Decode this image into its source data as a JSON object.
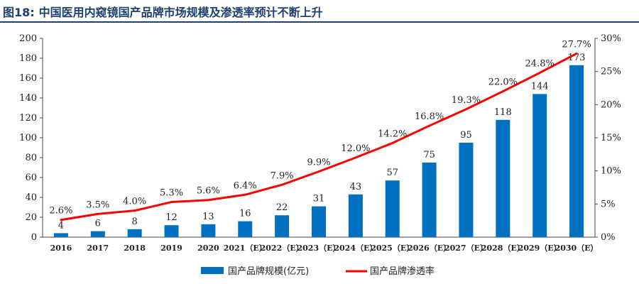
{
  "figure": {
    "number": "图18:",
    "title": "中国医用内窥镜国产品牌市场规模及渗透率预计不断上升",
    "title_color": "#1f3f6e",
    "rule_color": "#1f3f6e"
  },
  "chart_data": {
    "type": "bar",
    "categories": [
      "2016",
      "2017",
      "2018",
      "2019",
      "2020",
      "2021（E）",
      "2022（E）",
      "2023（E）",
      "2024（E）",
      "2025（E）",
      "2026（E）",
      "2027（E）",
      "2028（E）",
      "2029（E）",
      "2030（E）"
    ],
    "series": [
      {
        "name": "国产品牌规模(亿元)",
        "type": "bar",
        "axis": "left",
        "color": "#0070c0",
        "values": [
          4,
          6,
          8,
          12,
          13,
          16,
          22,
          31,
          43,
          57,
          75,
          95,
          118,
          144,
          173
        ],
        "labels": [
          "4",
          "6",
          "8",
          "12",
          "13",
          "16",
          "22",
          "31",
          "43",
          "57",
          "75",
          "95",
          "118",
          "144",
          "173"
        ]
      },
      {
        "name": "国产品牌渗透率",
        "type": "line",
        "axis": "right",
        "color": "#ff0000",
        "values": [
          2.6,
          3.5,
          4.0,
          5.3,
          5.6,
          6.4,
          7.9,
          9.9,
          12.0,
          14.2,
          16.8,
          19.3,
          22.0,
          24.8,
          27.7
        ],
        "labels": [
          "2.6%",
          "3.5%",
          "4.0%",
          "5.3%",
          "5.6%",
          "6.4%",
          "7.9%",
          "9.9%",
          "12.0%",
          "14.2%",
          "16.8%",
          "19.3%",
          "22.0%",
          "24.8%",
          "27.7%"
        ]
      }
    ],
    "left_axis": {
      "ylim": [
        0,
        200
      ],
      "ticks": [
        0,
        20,
        40,
        60,
        80,
        100,
        120,
        140,
        160,
        180,
        200
      ],
      "tick_labels": [
        "0",
        "20",
        "40",
        "60",
        "80",
        "100",
        "120",
        "140",
        "160",
        "180",
        "200"
      ]
    },
    "right_axis": {
      "ylim": [
        0,
        30
      ],
      "ticks": [
        0,
        5,
        10,
        15,
        20,
        25,
        30
      ],
      "tick_labels": [
        "0%",
        "5%",
        "10%",
        "15%",
        "20%",
        "25%",
        "30%"
      ]
    },
    "grid": false,
    "legend_position": "bottom-center"
  }
}
